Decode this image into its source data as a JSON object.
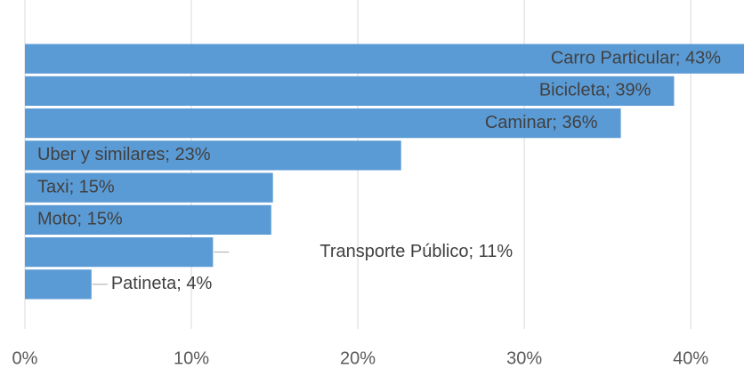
{
  "chart_data": {
    "type": "bar",
    "orientation": "horizontal",
    "color": "#5b9bd5",
    "values": [
      43.2,
      39,
      35.8,
      22.6,
      14.9,
      14.8,
      11.3,
      4
    ],
    "value_labels": [
      "Carro Particular; 43%",
      "Bicicleta; 39%",
      "Caminar; 36%",
      "Uber y similares; 23%",
      "Taxi; 15%",
      "Moto; 15%",
      "Transporte Público; 11%",
      "Patineta; 4%"
    ],
    "xlim": [
      0,
      43.2
    ],
    "xticks": [
      {
        "value": 0,
        "label": "0%"
      },
      {
        "value": 10,
        "label": "10%"
      },
      {
        "value": 20,
        "label": "20%"
      },
      {
        "value": 30,
        "label": "30%"
      },
      {
        "value": 40,
        "label": "40%"
      }
    ],
    "grid": true
  }
}
